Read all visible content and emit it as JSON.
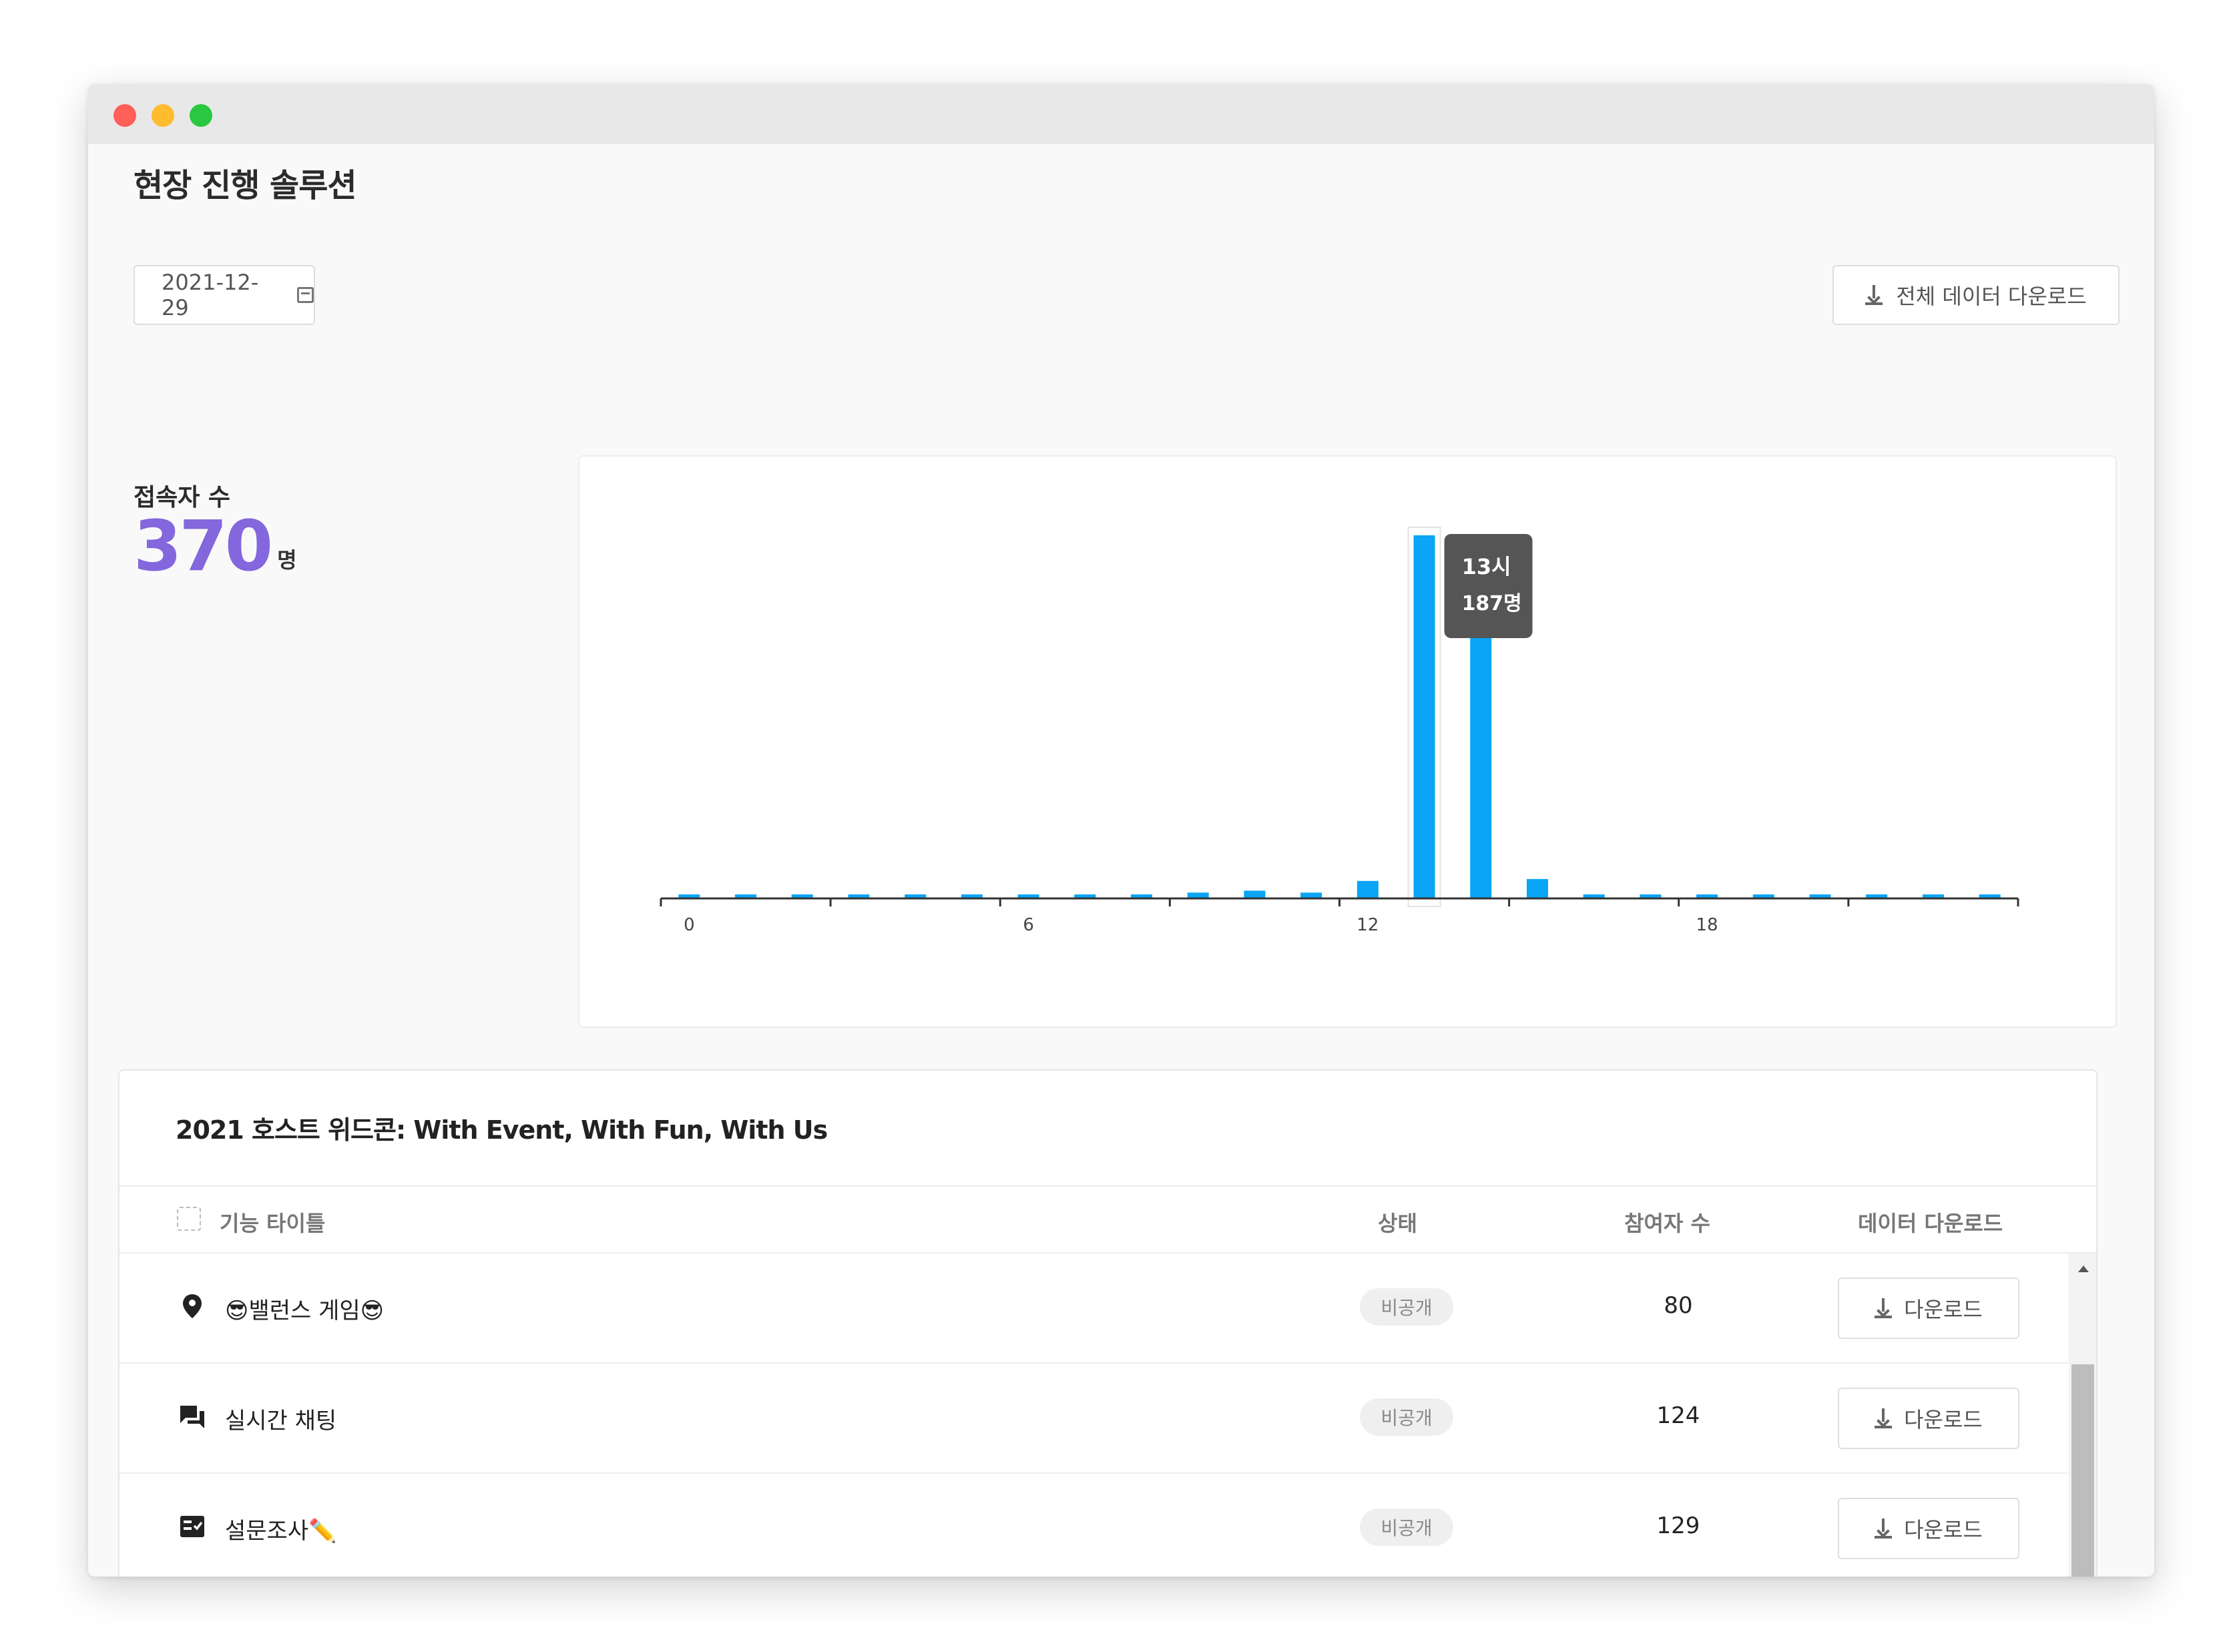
{
  "page": {
    "title": "현장 진행 솔루션",
    "date": "2021-12-29",
    "download_all_label": "전체 데이터 다운로드"
  },
  "visitors": {
    "label": "접속자 수",
    "count": "370",
    "unit": "명"
  },
  "chart_data": {
    "type": "bar",
    "x": [
      0,
      1,
      2,
      3,
      4,
      5,
      6,
      7,
      8,
      9,
      10,
      11,
      12,
      13,
      14,
      15,
      16,
      17,
      18,
      19,
      20,
      21,
      22,
      23
    ],
    "values": [
      1,
      1,
      1,
      1,
      1,
      1,
      1,
      1,
      1,
      3,
      4,
      3,
      9,
      187,
      150,
      10,
      1,
      1,
      1,
      1,
      1,
      1,
      1,
      1
    ],
    "tick_labels": [
      "0",
      "6",
      "12",
      "18"
    ],
    "tick_values": [
      0,
      6,
      12,
      18
    ],
    "ylim": [
      0,
      187
    ],
    "bar_color": "#0aa5f5",
    "tooltip": {
      "hour_label": "13시",
      "value_label": "187명",
      "index": 13
    }
  },
  "event": {
    "title": "2021 호스트 위드콘: With Event, With Fun, With Us",
    "columns": {
      "title": "기능 타이틀",
      "status": "상태",
      "participants": "참여자 수",
      "download": "데이터 다운로드"
    },
    "rows": [
      {
        "icon": "map-pin-icon",
        "name": "😎밸런스 게임😎",
        "status": "비공개",
        "participants": "80",
        "download": "다운로드"
      },
      {
        "icon": "chat-icon",
        "name": "실시간 채팅",
        "status": "비공개",
        "participants": "124",
        "download": "다운로드"
      },
      {
        "icon": "survey-icon",
        "name": "설문조사✏️",
        "status": "비공개",
        "participants": "129",
        "download": "다운로드"
      }
    ]
  }
}
